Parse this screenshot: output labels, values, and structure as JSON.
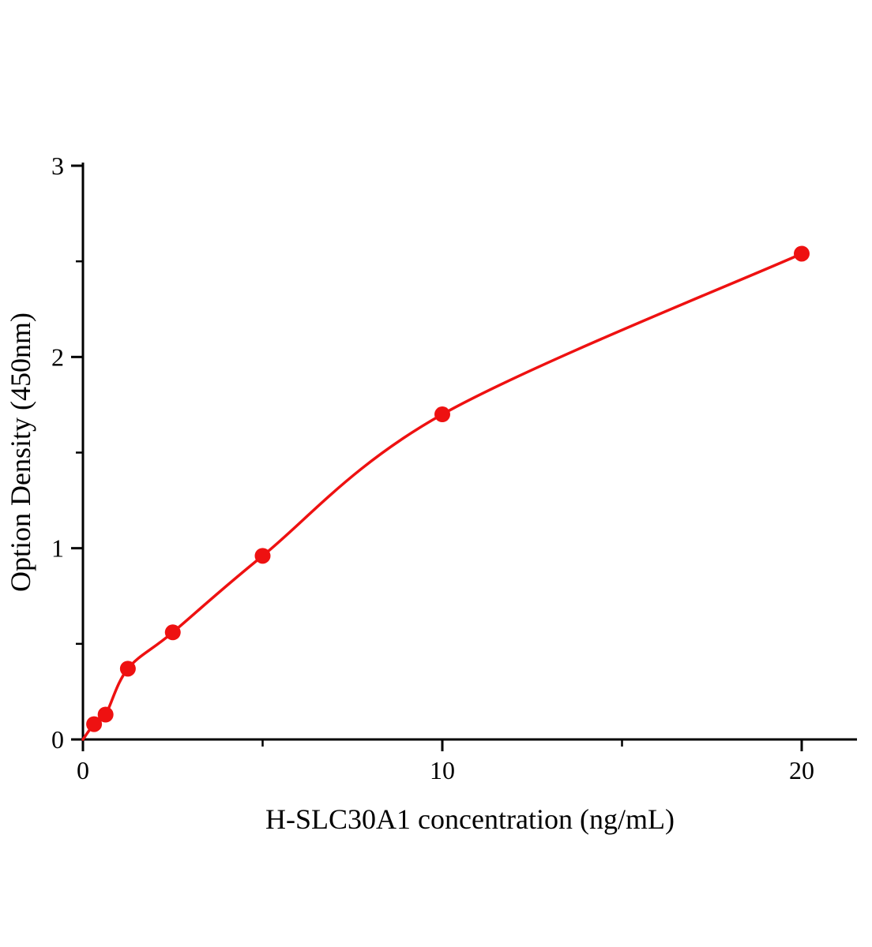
{
  "chart_data": {
    "type": "scatter",
    "title": "",
    "xlabel": "H-SLC30A1 concentration (ng/mL)",
    "ylabel": "Option Density (450nm)",
    "x": [
      0.31,
      0.63,
      1.25,
      2.5,
      5,
      10,
      20
    ],
    "y": [
      0.08,
      0.13,
      0.37,
      0.56,
      0.96,
      1.7,
      2.54
    ],
    "curve_start": {
      "x": 0,
      "y": 0
    },
    "xlim": [
      0,
      21.6
    ],
    "ylim": [
      0,
      3
    ],
    "x_major_ticks": [
      0,
      10,
      20
    ],
    "x_minor_ticks": [
      5,
      15
    ],
    "y_major_ticks": [
      0,
      1,
      2,
      3
    ],
    "y_minor_ticks": [
      0.5,
      1.5,
      2.5
    ],
    "grid": false,
    "legend": null,
    "marker_color": "#ee1111",
    "line_color": "#ee1111",
    "axis_color": "#000000"
  }
}
